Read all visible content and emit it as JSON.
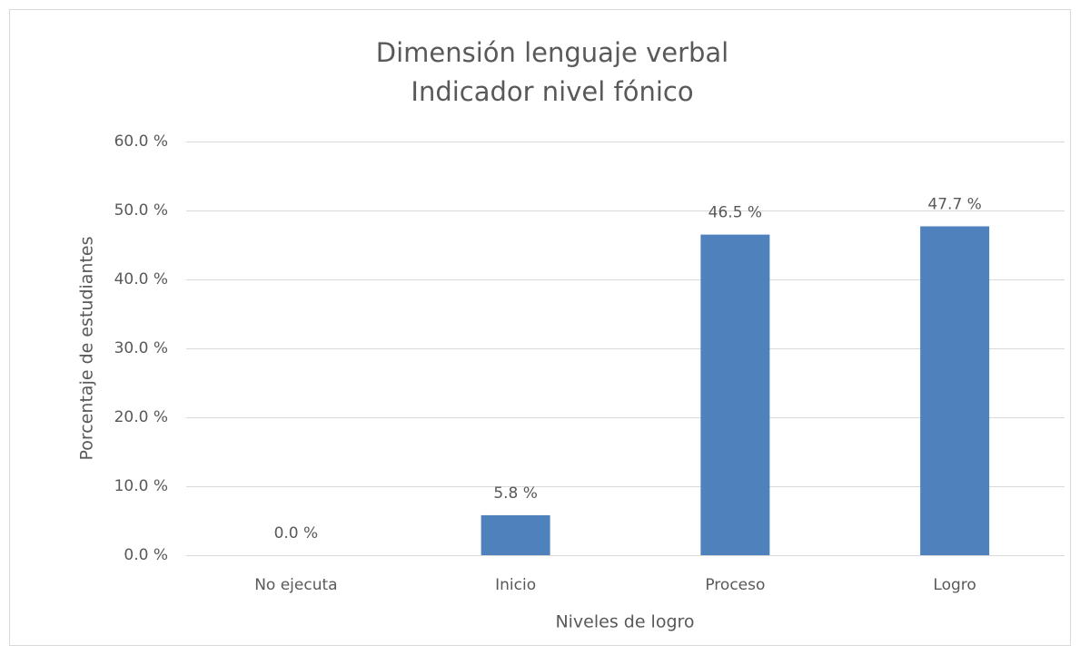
{
  "chart_data": {
    "type": "bar",
    "title": "Dimensión lenguaje verbal",
    "subtitle": "Indicador nivel fónico",
    "x_label": "Niveles de logro",
    "y_label": "Porcentaje de estudiantes",
    "categories": [
      "No ejecuta",
      "Inicio",
      "Proceso",
      "Logro"
    ],
    "values": [
      0,
      5.8,
      46.5,
      47.7
    ],
    "value_labels": [
      "0.0 %",
      "5.8 %",
      "46.5 %",
      "47.7 %"
    ],
    "color": "#4f81bd",
    "ylim": [
      0,
      60
    ],
    "yticks": [
      {
        "value": 0,
        "label": "0.0 %"
      },
      {
        "value": 10,
        "label": "10.0 %"
      },
      {
        "value": 20,
        "label": "20.0 %"
      },
      {
        "value": 30,
        "label": "30.0 %"
      },
      {
        "value": 40,
        "label": "40.0 %"
      },
      {
        "value": 50,
        "label": "50.0 %"
      },
      {
        "value": 60,
        "label": "60.0 %"
      }
    ],
    "grid": true
  }
}
